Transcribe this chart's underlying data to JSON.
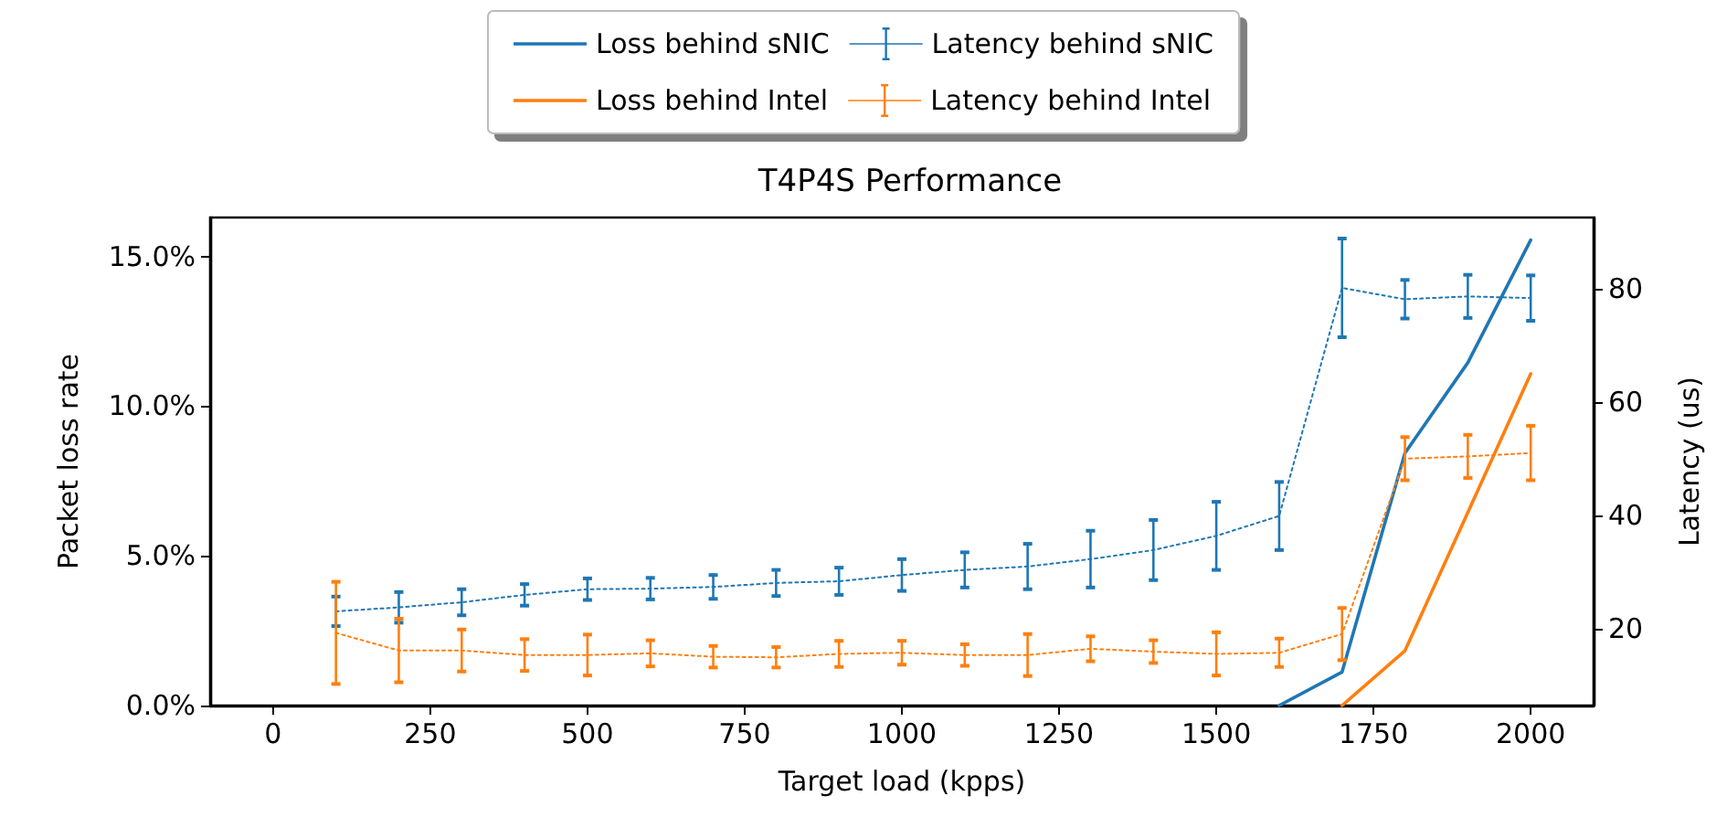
{
  "chart_data": {
    "type": "line",
    "title": "T4P4S Performance",
    "xlabel": "Target load (kpps)",
    "ylabel": "Packet loss rate",
    "y2label": "Latency (us)",
    "x": [
      100,
      200,
      300,
      400,
      500,
      600,
      700,
      800,
      900,
      1000,
      1100,
      1200,
      1300,
      1400,
      1500,
      1600,
      1700,
      1800,
      1900,
      2000
    ],
    "xlim": [
      -100,
      2100
    ],
    "xticks": [
      0,
      250,
      500,
      750,
      1000,
      1250,
      1500,
      1750,
      2000
    ],
    "ylim": [
      0,
      16.3
    ],
    "yticks": [
      {
        "value": 0,
        "label": "0.0%"
      },
      {
        "value": 5,
        "label": "5.0%"
      },
      {
        "value": 10,
        "label": "10.0%"
      },
      {
        "value": 15,
        "label": "15.0%"
      }
    ],
    "y2lim": [
      6.5,
      92.5
    ],
    "y2ticks": [
      20,
      40,
      60,
      80
    ],
    "legend": "top",
    "marker": "none",
    "grid": false,
    "series": [
      {
        "name": "Loss behind sNIC",
        "color": "#1f77b4",
        "line_style": "solid",
        "values": [
          null,
          null,
          null,
          null,
          null,
          null,
          null,
          null,
          null,
          null,
          null,
          null,
          null,
          null,
          null,
          0,
          1.12,
          8.43,
          11.45,
          15.55
        ]
      },
      {
        "name": "Latency behind sNIC",
        "color": "#1f77b4",
        "axis": "y2",
        "line_style": "dotted",
        "values": [
          23.1,
          23.8,
          24.7,
          26.0,
          27.0,
          27.1,
          27.4,
          28.1,
          28.4,
          29.5,
          30.4,
          31.0,
          32.3,
          33.9,
          36.4,
          39.9,
          80.1,
          78.1,
          78.6,
          78.3
        ],
        "errors": [
          2.6,
          2.7,
          2.3,
          1.9,
          1.9,
          1.9,
          2.1,
          2.3,
          2.4,
          2.8,
          3.1,
          4.0,
          5.0,
          5.3,
          6.0,
          6.0,
          8.7,
          3.4,
          3.8,
          4.0
        ]
      },
      {
        "name": "Loss behind Intel",
        "color": "#ff7f0e",
        "line_style": "solid",
        "values": [
          null,
          null,
          null,
          null,
          null,
          null,
          null,
          null,
          null,
          null,
          null,
          null,
          null,
          null,
          null,
          null,
          0,
          1.83,
          6.45,
          11.08
        ]
      },
      {
        "name": "Latency behind Intel",
        "color": "#ff7f0e",
        "axis": "y2",
        "line_style": "dotted",
        "values": [
          19.3,
          16.2,
          16.2,
          15.4,
          15.4,
          15.7,
          15.1,
          15.0,
          15.6,
          15.8,
          15.4,
          15.4,
          16.5,
          16.0,
          15.6,
          15.8,
          19.1,
          50.0,
          50.4,
          51.0
        ],
        "errors": [
          9.0,
          5.6,
          3.7,
          2.8,
          3.6,
          2.3,
          1.9,
          1.8,
          2.3,
          2.1,
          1.9,
          3.7,
          2.2,
          2.0,
          3.8,
          2.5,
          4.6,
          3.8,
          3.8,
          4.8
        ]
      }
    ]
  }
}
